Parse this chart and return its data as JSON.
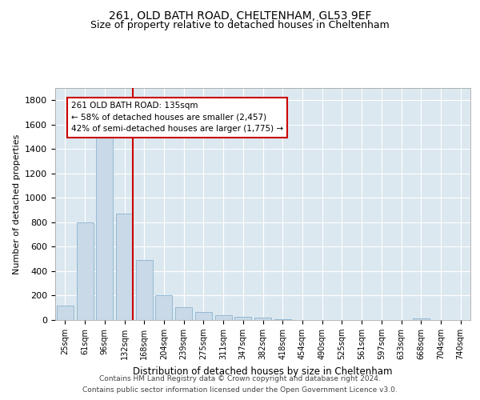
{
  "title": "261, OLD BATH ROAD, CHELTENHAM, GL53 9EF",
  "subtitle": "Size of property relative to detached houses in Cheltenham",
  "xlabel": "Distribution of detached houses by size in Cheltenham",
  "ylabel": "Number of detached properties",
  "categories": [
    "25sqm",
    "61sqm",
    "96sqm",
    "132sqm",
    "168sqm",
    "204sqm",
    "239sqm",
    "275sqm",
    "311sqm",
    "347sqm",
    "382sqm",
    "418sqm",
    "454sqm",
    "490sqm",
    "525sqm",
    "561sqm",
    "597sqm",
    "633sqm",
    "668sqm",
    "704sqm",
    "740sqm"
  ],
  "values": [
    120,
    800,
    1540,
    870,
    490,
    205,
    105,
    65,
    40,
    28,
    22,
    5,
    2,
    2,
    1,
    0,
    0,
    0,
    15,
    0,
    0
  ],
  "bar_color": "#c9d9e8",
  "bar_edge_color": "#7aaac8",
  "highlight_bar_index": 3,
  "highlight_line_color": "#cc0000",
  "annotation_text": "261 OLD BATH ROAD: 135sqm\n← 58% of detached houses are smaller (2,457)\n42% of semi-detached houses are larger (1,775) →",
  "annotation_box_color": "#ffffff",
  "annotation_box_edge_color": "#cc0000",
  "ylim": [
    0,
    1900
  ],
  "yticks": [
    0,
    200,
    400,
    600,
    800,
    1000,
    1200,
    1400,
    1600,
    1800
  ],
  "plot_background_color": "#dce8f0",
  "grid_color": "#ffffff",
  "footer_line1": "Contains HM Land Registry data © Crown copyright and database right 2024.",
  "footer_line2": "Contains public sector information licensed under the Open Government Licence v3.0.",
  "title_fontsize": 10,
  "subtitle_fontsize": 9
}
